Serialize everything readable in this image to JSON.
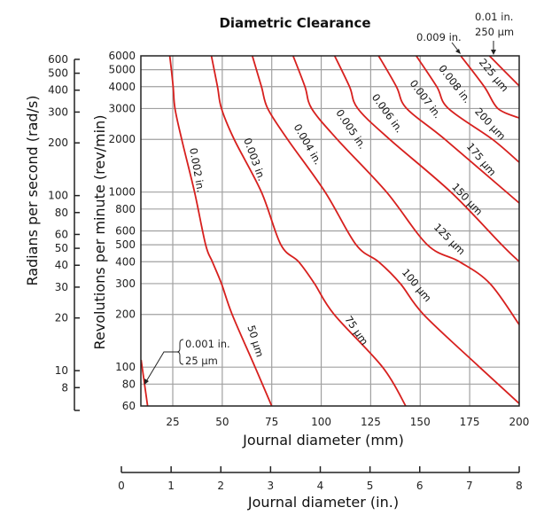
{
  "chart_data": {
    "type": "line",
    "title": "Diametric Clearance",
    "xlabel": "Journal diameter (mm)",
    "ylabel": "Revolutions per minute (rev/min)",
    "secondary_ylabel": "Radians per second (rad/s)",
    "secondary_xlabel": "Journal diameter (in.)",
    "xlim": [
      9,
      200
    ],
    "ylim": [
      60,
      6000
    ],
    "yscale": "log",
    "grid": true,
    "curve_color": "#d7201e",
    "grid_color": "#a0a0a0",
    "x_ticks": [
      "25",
      "50",
      "75",
      "100",
      "125",
      "150",
      "175",
      "200"
    ],
    "y_ticks": [
      "6000",
      "5000",
      "4000",
      "3000",
      "2000",
      "1000",
      "800",
      "600",
      "500",
      "400",
      "300",
      "200",
      "100",
      "80",
      "60"
    ],
    "secondary_y_ticks": [
      "600",
      "500",
      "400",
      "300",
      "200",
      "100",
      "80",
      "60",
      "50",
      "40",
      "30",
      "20",
      "10",
      "8"
    ],
    "secondary_x_ticks": [
      "0",
      "1",
      "2",
      "3",
      "4",
      "5",
      "6",
      "7",
      "8"
    ],
    "series": [
      {
        "name": "0.001 in. / 25 µm",
        "points": [
          [
            9,
            110
          ],
          [
            12.3,
            60
          ]
        ]
      },
      {
        "name": "0.002 in. / 50 µm",
        "points": [
          [
            23.5,
            6000
          ],
          [
            25.2,
            4000
          ],
          [
            26.1,
            3000
          ],
          [
            29.5,
            2000
          ],
          [
            36,
            1000
          ],
          [
            41.6,
            500
          ],
          [
            45,
            400
          ],
          [
            49.6,
            300
          ],
          [
            55,
            200
          ],
          [
            66.6,
            100
          ],
          [
            75,
            60
          ]
        ]
      },
      {
        "name": "0.003 in. / 75 µm",
        "points": [
          [
            44.5,
            6000
          ],
          [
            47.6,
            4000
          ],
          [
            49.6,
            3000
          ],
          [
            56,
            2000
          ],
          [
            69.8,
            1000
          ],
          [
            79.6,
            500
          ],
          [
            88.6,
            400
          ],
          [
            96.6,
            300
          ],
          [
            106.5,
            200
          ],
          [
            131,
            100
          ],
          [
            142.7,
            60
          ]
        ]
      },
      {
        "name": "0.004 in. / 100 µm",
        "points": [
          [
            65.2,
            6000
          ],
          [
            69.8,
            4000
          ],
          [
            73,
            3000
          ],
          [
            83,
            2000
          ],
          [
            102,
            1000
          ],
          [
            117.6,
            500
          ],
          [
            129,
            400
          ],
          [
            140,
            300
          ],
          [
            151.7,
            200
          ],
          [
            180,
            100
          ],
          [
            200,
            62
          ]
        ]
      },
      {
        "name": "0.005 in. / 125 µm",
        "points": [
          [
            85.8,
            6000
          ],
          [
            91.8,
            4000
          ],
          [
            95.2,
            3000
          ],
          [
            108.1,
            2000
          ],
          [
            133,
            1000
          ],
          [
            153.6,
            500
          ],
          [
            169.9,
            400
          ],
          [
            185.3,
            300
          ],
          [
            200,
            175
          ]
        ]
      },
      {
        "name": "0.006 in. / 150 µm",
        "points": [
          [
            106.8,
            6000
          ],
          [
            114.3,
            4000
          ],
          [
            118.5,
            3000
          ],
          [
            134.6,
            2000
          ],
          [
            165.5,
            1000
          ],
          [
            191.2,
            500
          ],
          [
            200,
            401
          ]
        ]
      },
      {
        "name": "0.007 in. / 175 µm",
        "points": [
          [
            129,
            6000
          ],
          [
            138,
            4000
          ],
          [
            143.2,
            3000
          ],
          [
            162.5,
            2000
          ],
          [
            200,
            866
          ]
        ]
      },
      {
        "name": "0.008 in. / 200 µm",
        "points": [
          [
            148,
            6000
          ],
          [
            158.4,
            4000
          ],
          [
            164.3,
            3000
          ],
          [
            186.5,
            2000
          ],
          [
            200,
            1480
          ]
        ]
      },
      {
        "name": "0.009 in. / 225 µm",
        "points": [
          [
            170.5,
            6000
          ],
          [
            182.4,
            4000
          ],
          [
            189.3,
            3000
          ],
          [
            200,
            2650
          ]
        ]
      },
      {
        "name": "0.01 in. / 250 µm",
        "points": [
          [
            185,
            6000
          ],
          [
            200,
            4040
          ]
        ]
      }
    ],
    "curve_labels": [
      "0.002 in.",
      "0.003 in.",
      "0.004 in.",
      "0.005 in.",
      "0.006 in.",
      "0.007 in.",
      "0.008 in.",
      "225 µm",
      "200 µm",
      "175 µm",
      "150 µm",
      "125 µm",
      "100 µm",
      "75 µm",
      "50 µm"
    ],
    "annotations": {
      "c001_in": "0.001 in.",
      "c001_um": "25 µm",
      "c009_in": "0.009 in.",
      "c01_in": "0.01 in.",
      "c01_um": "250 µm"
    }
  }
}
